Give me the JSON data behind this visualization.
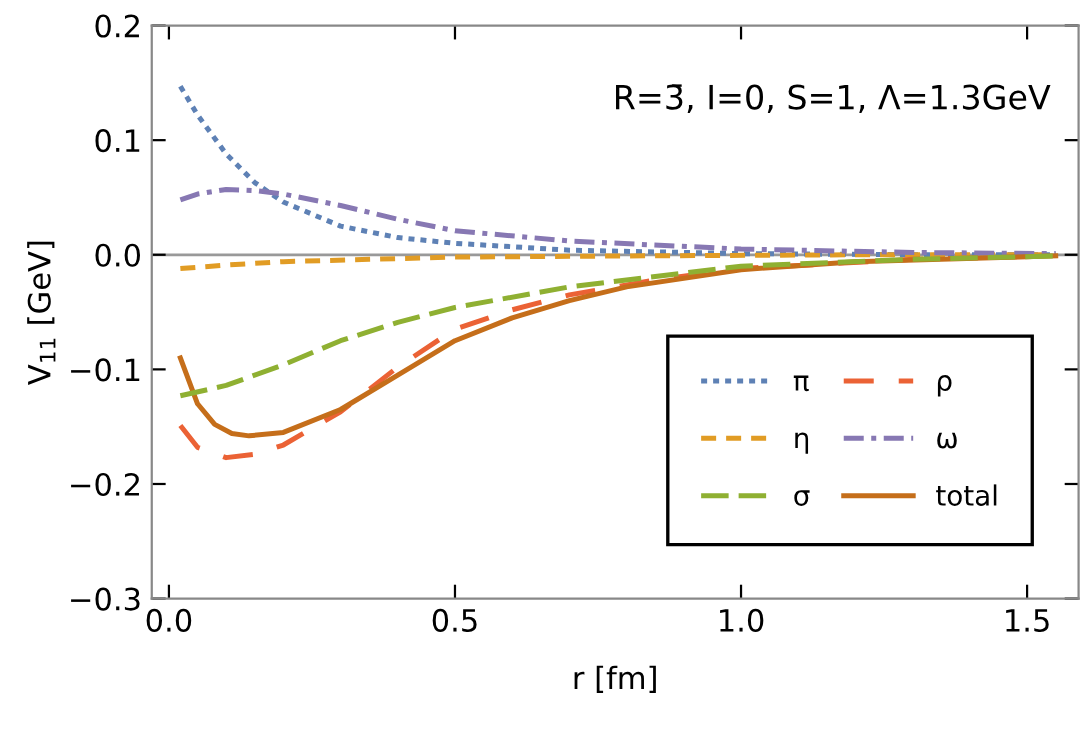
{
  "chart_data": {
    "type": "line",
    "xlabel": "r [fm]",
    "ylabel": "V$_{11}$ [GeV]",
    "annotations": [
      "R=3̄, I=0, S=1, Λ=1.3GeV"
    ],
    "xlim": [
      -0.03,
      1.59
    ],
    "ylim": [
      -0.3,
      0.2
    ],
    "xticks": [
      {
        "value": 0,
        "label": "0.0"
      },
      0.5,
      {
        "value": 1,
        "label": "1.0"
      },
      1.5
    ],
    "yticks": [
      {
        "value": -0.3,
        "label": "−0.3"
      },
      {
        "value": -0.2,
        "label": "−0.2"
      },
      {
        "value": -0.1,
        "label": "−0.1"
      },
      {
        "value": 0,
        "label": "0.0"
      },
      0.1,
      0.2
    ],
    "ref_lines": [
      {
        "axis": "y",
        "value": 0,
        "color": "#999999"
      }
    ],
    "grid": false,
    "legend": "bottom right",
    "series": [
      {
        "name": "π",
        "color": "#5e81b5",
        "line_style": "dotted",
        "x": [
          0.02,
          0.05,
          0.1,
          0.15,
          0.2,
          0.3,
          0.4,
          0.5,
          0.7,
          1.0,
          1.3,
          1.55
        ],
        "values": [
          0.147,
          0.122,
          0.088,
          0.063,
          0.046,
          0.025,
          0.015,
          0.01,
          0.004,
          0.001,
          0.0,
          0.0
        ]
      },
      {
        "name": "η",
        "color": "#e19c24",
        "line_style": "dashed",
        "x": [
          0.02,
          0.1,
          0.2,
          0.35,
          0.5,
          0.8,
          1.2,
          1.55
        ],
        "values": [
          -0.012,
          -0.009,
          -0.006,
          -0.004,
          -0.002,
          -0.001,
          0.0,
          0.0
        ]
      },
      {
        "name": "σ",
        "color": "#8fb032",
        "line_style": "longdash",
        "x": [
          0.02,
          0.1,
          0.2,
          0.3,
          0.4,
          0.5,
          0.7,
          1.0,
          1.3,
          1.55
        ],
        "values": [
          -0.123,
          -0.114,
          -0.096,
          -0.075,
          -0.059,
          -0.046,
          -0.028,
          -0.01,
          -0.004,
          -0.001
        ]
      },
      {
        "name": "ρ",
        "color": "#eb6235",
        "line_style": "widedash",
        "x": [
          0.02,
          0.05,
          0.1,
          0.15,
          0.2,
          0.3,
          0.4,
          0.5,
          0.6,
          0.7,
          0.85,
          1.0,
          1.3,
          1.55
        ],
        "values": [
          -0.149,
          -0.168,
          -0.177,
          -0.174,
          -0.166,
          -0.137,
          -0.098,
          -0.065,
          -0.048,
          -0.035,
          -0.022,
          -0.012,
          -0.004,
          -0.001
        ]
      },
      {
        "name": "ω",
        "color": "#8778b3",
        "line_style": "dashdot",
        "x": [
          0.02,
          0.05,
          0.1,
          0.15,
          0.2,
          0.3,
          0.4,
          0.5,
          0.7,
          1.0,
          1.3,
          1.55
        ],
        "values": [
          0.048,
          0.053,
          0.057,
          0.056,
          0.053,
          0.043,
          0.031,
          0.021,
          0.012,
          0.005,
          0.002,
          0.001
        ]
      },
      {
        "name": "total",
        "color": "#c56e1a",
        "line_style": "solid",
        "x": [
          0.02,
          0.05,
          0.08,
          0.11,
          0.14,
          0.2,
          0.3,
          0.4,
          0.5,
          0.6,
          0.7,
          0.8,
          1.0,
          1.2,
          1.55
        ],
        "values": [
          -0.09,
          -0.13,
          -0.148,
          -0.156,
          -0.158,
          -0.155,
          -0.135,
          -0.105,
          -0.075,
          -0.055,
          -0.04,
          -0.028,
          -0.013,
          -0.006,
          -0.001
        ]
      }
    ]
  }
}
